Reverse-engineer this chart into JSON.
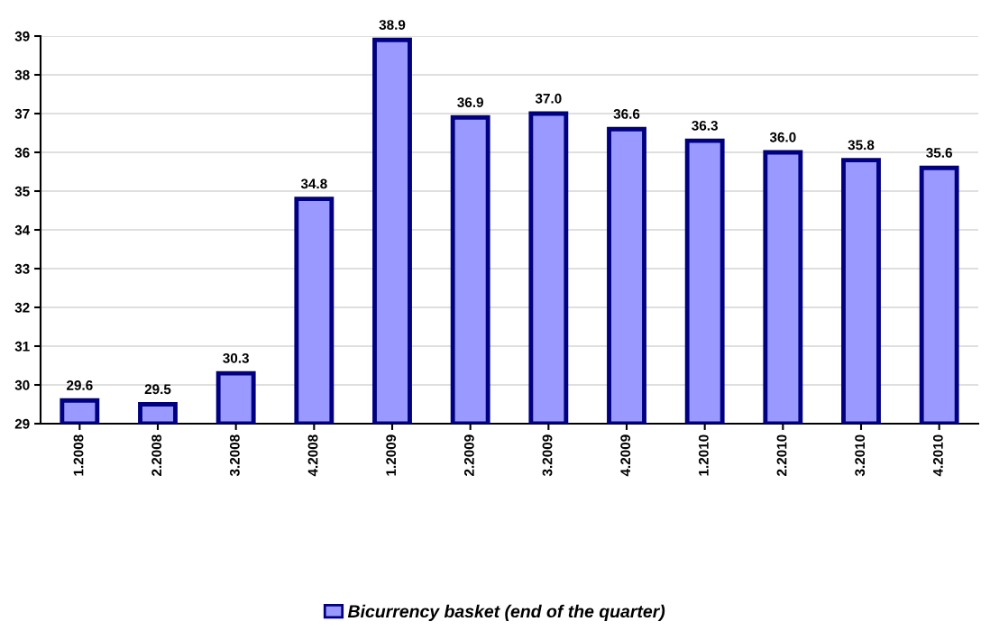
{
  "chart_data": {
    "type": "bar",
    "categories": [
      "1.2008",
      "2.2008",
      "3.2008",
      "4.2008",
      "1.2009",
      "2.2009",
      "3.2009",
      "4.2009",
      "1.2010",
      "2.2010",
      "3.2010",
      "4.2010"
    ],
    "series": [
      {
        "name": "Bicurrency basket (end of the quarter)",
        "color": "#9999ff",
        "values": [
          29.6,
          29.5,
          30.3,
          34.8,
          38.9,
          36.9,
          37.0,
          36.6,
          36.3,
          36.0,
          35.8,
          35.6
        ],
        "value_labels": [
          "29.6",
          "29.5",
          "30.3",
          "34.8",
          "38.9",
          "36.9",
          "37.0",
          "36.6",
          "36.3",
          "36.0",
          "35.8",
          "35.6"
        ]
      }
    ],
    "ylim": [
      29,
      39
    ],
    "yticks": [
      29,
      30,
      31,
      32,
      33,
      34,
      35,
      36,
      37,
      38,
      39
    ],
    "grid": "y",
    "legend": "bottom"
  }
}
